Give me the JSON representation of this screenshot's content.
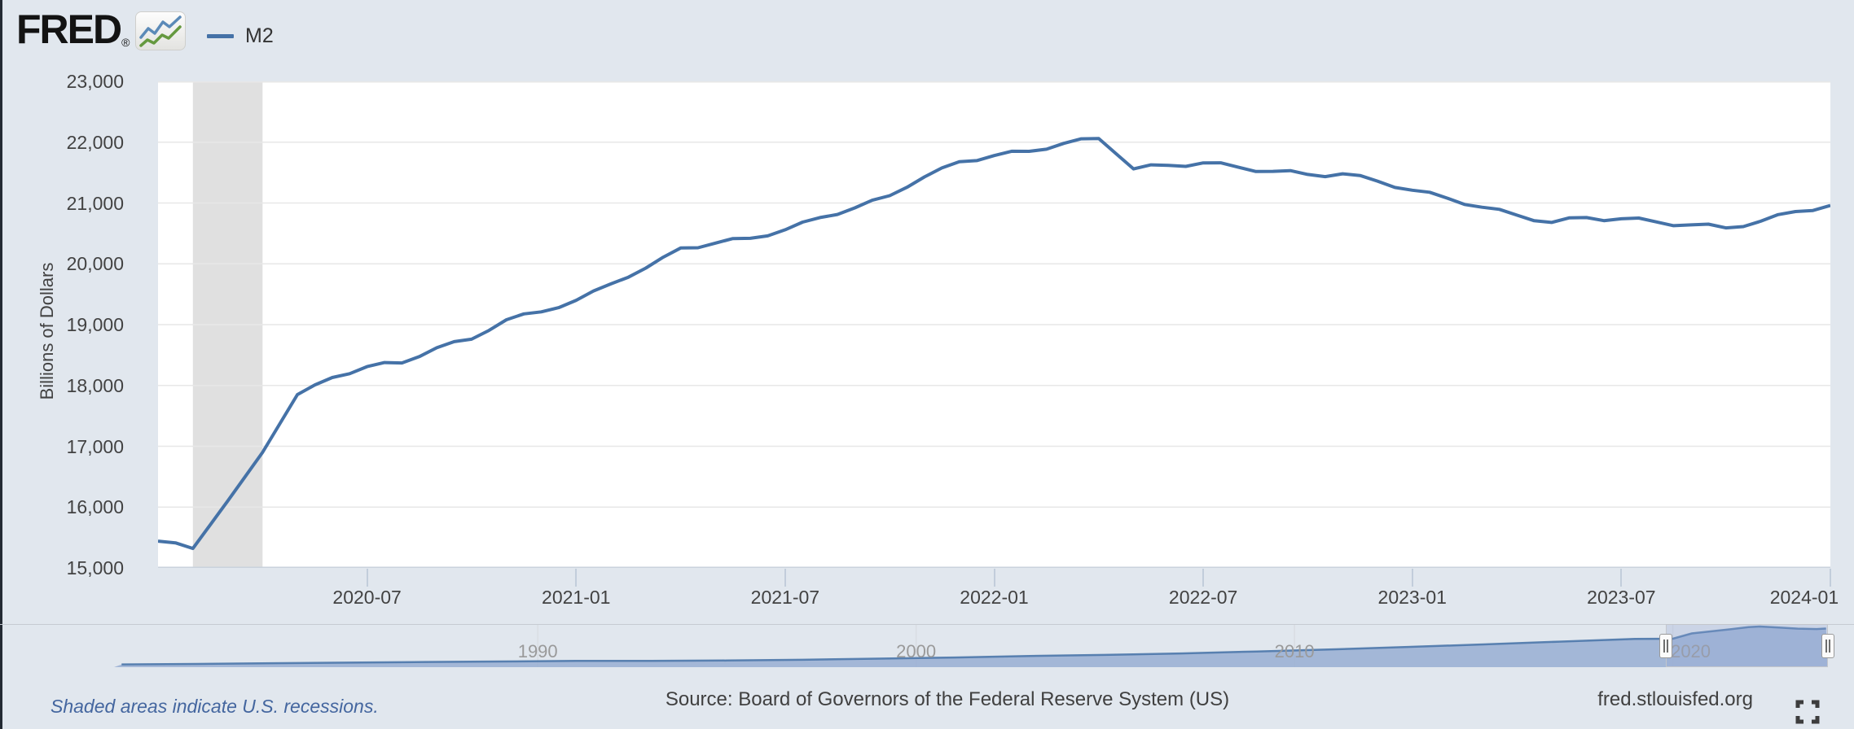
{
  "header": {
    "brand": "FRED",
    "registered": "®",
    "legend_label": "M2"
  },
  "y_axis": {
    "title": "Billions of Dollars",
    "tick_labels": [
      "23,000",
      "22,000",
      "21,000",
      "20,000",
      "19,000",
      "18,000",
      "17,000",
      "16,000",
      "15,000"
    ]
  },
  "x_axis": {
    "tick_labels": [
      "2020-07",
      "2021-01",
      "2021-07",
      "2022-01",
      "2022-07",
      "2023-01",
      "2023-07",
      "2024-01"
    ]
  },
  "range_selector": {
    "decade_labels": [
      "1990",
      "2000",
      "2010",
      "2020"
    ]
  },
  "footer": {
    "recession_note": "Shaded areas indicate U.S. recessions.",
    "source": "Source: Board of Governors of the Federal Reserve System (US)",
    "site": "fred.stlouisfed.org"
  },
  "colors": {
    "line_blue": "#4572a7",
    "mini_fill": "#93abd1",
    "recession_gray": "#e0e0e0",
    "page_bg": "#e1e7ee",
    "plot_bg": "#ffffff",
    "gridline": "#e7e7e7",
    "axis_line": "#c9d2dc",
    "tick_mark": "#c2cddb",
    "note_blue": "#44669f",
    "logo_icon_blue": "#5b8ab8",
    "logo_icon_green": "#65993f"
  },
  "chart_data": [
    {
      "type": "line",
      "title": "M2",
      "ylabel": "Billions of Dollars",
      "frequency": "monthly",
      "x_start": "2020-01",
      "x_end": "2024-01",
      "ylim": [
        15000,
        23000
      ],
      "y_ticks": [
        15000,
        16000,
        17000,
        18000,
        19000,
        20000,
        21000,
        22000,
        23000
      ],
      "x_tick_months": [
        "2020-07",
        "2021-01",
        "2021-07",
        "2022-01",
        "2022-07",
        "2023-01",
        "2023-07",
        "2024-01"
      ],
      "grid": "horizontal",
      "legend_position": "top-left",
      "recession_band": {
        "from": "2020-02",
        "to": "2020-04"
      },
      "values": [
        15440,
        15320,
        16100,
        16900,
        17850,
        18130,
        18310,
        18370,
        18620,
        18760,
        19080,
        19210,
        19400,
        19670,
        19930,
        20260,
        20340,
        20420,
        20560,
        20760,
        20920,
        21120,
        21430,
        21680,
        21780,
        21850,
        21980,
        22060,
        21560,
        21620,
        21660,
        21590,
        21520,
        21470,
        21480,
        21360,
        21210,
        21080,
        20930,
        20800,
        20680,
        20760,
        20740,
        20690,
        20640,
        20590,
        20700,
        20860,
        20960
      ]
    },
    {
      "type": "area",
      "role": "range-selector-overview",
      "series_name": "M2 full history",
      "decade_ticks": [
        1990,
        2000,
        2010,
        2020
      ],
      "selected_window": [
        "2020-01",
        "2024-01"
      ],
      "x": [
        1979,
        1981,
        1983,
        1985,
        1987,
        1989,
        1991,
        1993,
        1995,
        1997,
        1999,
        2001,
        2003,
        2005,
        2007,
        2009,
        2011,
        2013,
        2015,
        2017,
        2019,
        2020,
        2020.5,
        2021,
        2021.5,
        2022,
        2022.3,
        2022.8,
        2023.3,
        2023.8,
        2024.05
      ],
      "values": [
        1500,
        1750,
        2150,
        2480,
        2830,
        3070,
        3380,
        3440,
        3630,
        4030,
        4630,
        5250,
        6070,
        6680,
        7470,
        8530,
        9660,
        10990,
        12340,
        13840,
        15320,
        15450,
        18300,
        19400,
        20500,
        21700,
        22050,
        21500,
        20900,
        20700,
        20950
      ]
    }
  ]
}
